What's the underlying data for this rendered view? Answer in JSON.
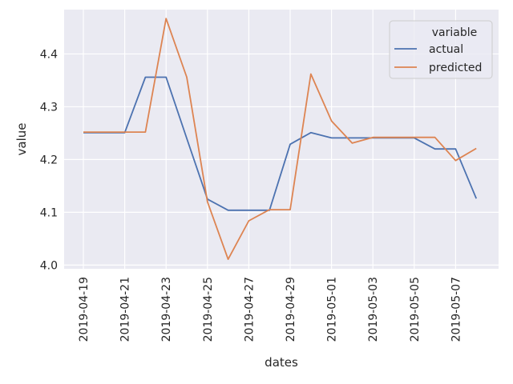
{
  "chart_data": {
    "type": "line",
    "xlabel": "dates",
    "ylabel": "value",
    "x": [
      "2019-04-19",
      "2019-04-20",
      "2019-04-21",
      "2019-04-22",
      "2019-04-23",
      "2019-04-24",
      "2019-04-25",
      "2019-04-26",
      "2019-04-27",
      "2019-04-28",
      "2019-04-29",
      "2019-04-30",
      "2019-05-01",
      "2019-05-02",
      "2019-05-03",
      "2019-05-04",
      "2019-05-05",
      "2019-05-06",
      "2019-05-07",
      "2019-05-08"
    ],
    "x_ticks": [
      "2019-04-19",
      "2019-04-21",
      "2019-04-23",
      "2019-04-25",
      "2019-04-27",
      "2019-04-29",
      "2019-05-01",
      "2019-05-03",
      "2019-05-05",
      "2019-05-07"
    ],
    "y_ticks": [
      "4.0",
      "4.1",
      "4.2",
      "4.3",
      "4.4"
    ],
    "ylim": [
      3.993,
      4.484
    ],
    "grid": true,
    "legend": {
      "title": "variable",
      "position": "top-right"
    },
    "series": [
      {
        "name": "actual",
        "color": "#4c72b0",
        "values": [
          4.251,
          4.251,
          4.251,
          4.356,
          4.356,
          4.24,
          4.125,
          4.104,
          4.104,
          4.104,
          4.229,
          4.251,
          4.241,
          4.241,
          4.241,
          4.241,
          4.241,
          4.22,
          4.22,
          4.126
        ]
      },
      {
        "name": "predicted",
        "color": "#dd8452",
        "values": [
          4.252,
          4.252,
          4.252,
          4.252,
          4.467,
          4.356,
          4.12,
          4.011,
          4.084,
          4.105,
          4.105,
          4.362,
          4.273,
          4.231,
          4.242,
          4.242,
          4.242,
          4.242,
          4.198,
          4.221
        ]
      }
    ]
  }
}
